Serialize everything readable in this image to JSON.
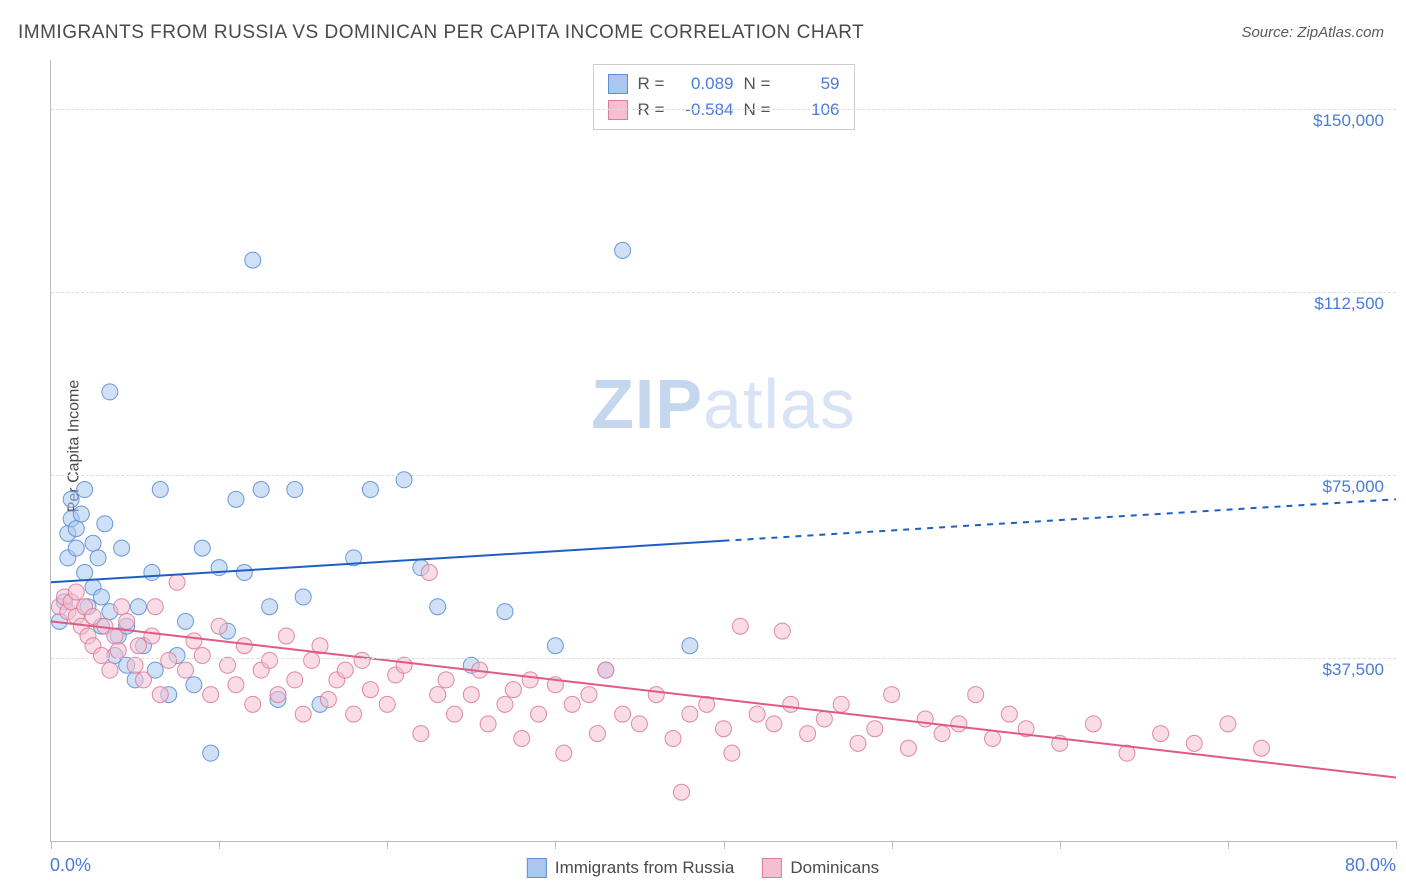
{
  "title": "IMMIGRANTS FROM RUSSIA VS DOMINICAN PER CAPITA INCOME CORRELATION CHART",
  "source": "Source: ZipAtlas.com",
  "ylabel": "Per Capita Income",
  "watermark_bold": "ZIP",
  "watermark_light": "atlas",
  "chart": {
    "type": "scatter",
    "xlim": [
      0,
      80
    ],
    "ylim": [
      0,
      160000
    ],
    "x_axis_left_label": "0.0%",
    "x_axis_right_label": "80.0%",
    "x_ticks_pct": [
      0,
      10,
      20,
      30,
      40,
      50,
      60,
      70,
      80
    ],
    "y_gridlines": [
      {
        "value": 37500,
        "label": "$37,500"
      },
      {
        "value": 75000,
        "label": "$75,000"
      },
      {
        "value": 112500,
        "label": "$112,500"
      },
      {
        "value": 150000,
        "label": "$150,000"
      }
    ],
    "background_color": "#ffffff",
    "grid_color": "#dddddd",
    "axis_color": "#bbbbbb",
    "tick_label_color": "#4a7bd8",
    "marker_radius": 8,
    "marker_opacity": 0.55,
    "marker_stroke_opacity": 0.9,
    "marker_stroke_width": 1,
    "series": [
      {
        "key": "russia",
        "label": "Immigrants from Russia",
        "fill": "#a9c7ef",
        "stroke": "#5c8fd6",
        "R": "0.089",
        "N": "59",
        "trend": {
          "color": "#1e5fc4",
          "width": 2,
          "solid_x_end_pct": 40,
          "y_at_x0": 53000,
          "y_at_x80": 70000
        },
        "points": [
          {
            "x": 0.5,
            "y": 45000
          },
          {
            "x": 0.8,
            "y": 49000
          },
          {
            "x": 1.0,
            "y": 58000
          },
          {
            "x": 1.0,
            "y": 63000
          },
          {
            "x": 1.2,
            "y": 66000
          },
          {
            "x": 1.2,
            "y": 70000
          },
          {
            "x": 1.5,
            "y": 60000
          },
          {
            "x": 1.5,
            "y": 64000
          },
          {
            "x": 1.8,
            "y": 67000
          },
          {
            "x": 2.0,
            "y": 55000
          },
          {
            "x": 2.0,
            "y": 72000
          },
          {
            "x": 2.2,
            "y": 48000
          },
          {
            "x": 2.5,
            "y": 52000
          },
          {
            "x": 2.5,
            "y": 61000
          },
          {
            "x": 2.8,
            "y": 58000
          },
          {
            "x": 3.0,
            "y": 44000
          },
          {
            "x": 3.0,
            "y": 50000
          },
          {
            "x": 3.2,
            "y": 65000
          },
          {
            "x": 3.5,
            "y": 47000
          },
          {
            "x": 3.5,
            "y": 92000
          },
          {
            "x": 3.8,
            "y": 38000
          },
          {
            "x": 4.0,
            "y": 42000
          },
          {
            "x": 4.2,
            "y": 60000
          },
          {
            "x": 4.5,
            "y": 36000
          },
          {
            "x": 4.5,
            "y": 44000
          },
          {
            "x": 5.0,
            "y": 33000
          },
          {
            "x": 5.2,
            "y": 48000
          },
          {
            "x": 5.5,
            "y": 40000
          },
          {
            "x": 6.0,
            "y": 55000
          },
          {
            "x": 6.2,
            "y": 35000
          },
          {
            "x": 6.5,
            "y": 72000
          },
          {
            "x": 7.0,
            "y": 30000
          },
          {
            "x": 7.5,
            "y": 38000
          },
          {
            "x": 8.0,
            "y": 45000
          },
          {
            "x": 8.5,
            "y": 32000
          },
          {
            "x": 9.0,
            "y": 60000
          },
          {
            "x": 9.5,
            "y": 18000
          },
          {
            "x": 10.0,
            "y": 56000
          },
          {
            "x": 10.5,
            "y": 43000
          },
          {
            "x": 11.0,
            "y": 70000
          },
          {
            "x": 11.5,
            "y": 55000
          },
          {
            "x": 12.0,
            "y": 119000
          },
          {
            "x": 12.5,
            "y": 72000
          },
          {
            "x": 13.0,
            "y": 48000
          },
          {
            "x": 13.5,
            "y": 29000
          },
          {
            "x": 14.5,
            "y": 72000
          },
          {
            "x": 15.0,
            "y": 50000
          },
          {
            "x": 16.0,
            "y": 28000
          },
          {
            "x": 18.0,
            "y": 58000
          },
          {
            "x": 19.0,
            "y": 72000
          },
          {
            "x": 21.0,
            "y": 74000
          },
          {
            "x": 22.0,
            "y": 56000
          },
          {
            "x": 23.0,
            "y": 48000
          },
          {
            "x": 25.0,
            "y": 36000
          },
          {
            "x": 27.0,
            "y": 47000
          },
          {
            "x": 30.0,
            "y": 40000
          },
          {
            "x": 33.0,
            "y": 35000
          },
          {
            "x": 34.0,
            "y": 121000
          },
          {
            "x": 38.0,
            "y": 40000
          }
        ]
      },
      {
        "key": "dominican",
        "label": "Dominicans",
        "fill": "#f4c0cf",
        "stroke": "#de7d9b",
        "R": "-0.584",
        "N": "106",
        "trend": {
          "color": "#e05a84",
          "width": 2,
          "solid_x_end_pct": 80,
          "y_at_x0": 45000,
          "y_at_x80": 13000
        },
        "points": [
          {
            "x": 0.5,
            "y": 48000
          },
          {
            "x": 0.8,
            "y": 50000
          },
          {
            "x": 1.0,
            "y": 47000
          },
          {
            "x": 1.2,
            "y": 49000
          },
          {
            "x": 1.5,
            "y": 46000
          },
          {
            "x": 1.5,
            "y": 51000
          },
          {
            "x": 1.8,
            "y": 44000
          },
          {
            "x": 2.0,
            "y": 48000
          },
          {
            "x": 2.2,
            "y": 42000
          },
          {
            "x": 2.5,
            "y": 40000
          },
          {
            "x": 2.5,
            "y": 46000
          },
          {
            "x": 3.0,
            "y": 38000
          },
          {
            "x": 3.2,
            "y": 44000
          },
          {
            "x": 3.5,
            "y": 35000
          },
          {
            "x": 3.8,
            "y": 42000
          },
          {
            "x": 4.0,
            "y": 39000
          },
          {
            "x": 4.2,
            "y": 48000
          },
          {
            "x": 4.5,
            "y": 45000
          },
          {
            "x": 5.0,
            "y": 36000
          },
          {
            "x": 5.2,
            "y": 40000
          },
          {
            "x": 5.5,
            "y": 33000
          },
          {
            "x": 6.0,
            "y": 42000
          },
          {
            "x": 6.2,
            "y": 48000
          },
          {
            "x": 6.5,
            "y": 30000
          },
          {
            "x": 7.0,
            "y": 37000
          },
          {
            "x": 7.5,
            "y": 53000
          },
          {
            "x": 8.0,
            "y": 35000
          },
          {
            "x": 8.5,
            "y": 41000
          },
          {
            "x": 9.0,
            "y": 38000
          },
          {
            "x": 9.5,
            "y": 30000
          },
          {
            "x": 10.0,
            "y": 44000
          },
          {
            "x": 10.5,
            "y": 36000
          },
          {
            "x": 11.0,
            "y": 32000
          },
          {
            "x": 11.5,
            "y": 40000
          },
          {
            "x": 12.0,
            "y": 28000
          },
          {
            "x": 12.5,
            "y": 35000
          },
          {
            "x": 13.0,
            "y": 37000
          },
          {
            "x": 13.5,
            "y": 30000
          },
          {
            "x": 14.0,
            "y": 42000
          },
          {
            "x": 14.5,
            "y": 33000
          },
          {
            "x": 15.0,
            "y": 26000
          },
          {
            "x": 15.5,
            "y": 37000
          },
          {
            "x": 16.0,
            "y": 40000
          },
          {
            "x": 16.5,
            "y": 29000
          },
          {
            "x": 17.0,
            "y": 33000
          },
          {
            "x": 17.5,
            "y": 35000
          },
          {
            "x": 18.0,
            "y": 26000
          },
          {
            "x": 18.5,
            "y": 37000
          },
          {
            "x": 19.0,
            "y": 31000
          },
          {
            "x": 20.0,
            "y": 28000
          },
          {
            "x": 20.5,
            "y": 34000
          },
          {
            "x": 21.0,
            "y": 36000
          },
          {
            "x": 22.0,
            "y": 22000
          },
          {
            "x": 22.5,
            "y": 55000
          },
          {
            "x": 23.0,
            "y": 30000
          },
          {
            "x": 23.5,
            "y": 33000
          },
          {
            "x": 24.0,
            "y": 26000
          },
          {
            "x": 25.0,
            "y": 30000
          },
          {
            "x": 25.5,
            "y": 35000
          },
          {
            "x": 26.0,
            "y": 24000
          },
          {
            "x": 27.0,
            "y": 28000
          },
          {
            "x": 27.5,
            "y": 31000
          },
          {
            "x": 28.0,
            "y": 21000
          },
          {
            "x": 28.5,
            "y": 33000
          },
          {
            "x": 29.0,
            "y": 26000
          },
          {
            "x": 30.0,
            "y": 32000
          },
          {
            "x": 30.5,
            "y": 18000
          },
          {
            "x": 31.0,
            "y": 28000
          },
          {
            "x": 32.0,
            "y": 30000
          },
          {
            "x": 32.5,
            "y": 22000
          },
          {
            "x": 33.0,
            "y": 35000
          },
          {
            "x": 34.0,
            "y": 26000
          },
          {
            "x": 35.0,
            "y": 24000
          },
          {
            "x": 36.0,
            "y": 30000
          },
          {
            "x": 37.0,
            "y": 21000
          },
          {
            "x": 37.5,
            "y": 10000
          },
          {
            "x": 38.0,
            "y": 26000
          },
          {
            "x": 39.0,
            "y": 28000
          },
          {
            "x": 40.0,
            "y": 23000
          },
          {
            "x": 40.5,
            "y": 18000
          },
          {
            "x": 41.0,
            "y": 44000
          },
          {
            "x": 42.0,
            "y": 26000
          },
          {
            "x": 43.0,
            "y": 24000
          },
          {
            "x": 43.5,
            "y": 43000
          },
          {
            "x": 44.0,
            "y": 28000
          },
          {
            "x": 45.0,
            "y": 22000
          },
          {
            "x": 46.0,
            "y": 25000
          },
          {
            "x": 47.0,
            "y": 28000
          },
          {
            "x": 48.0,
            "y": 20000
          },
          {
            "x": 49.0,
            "y": 23000
          },
          {
            "x": 50.0,
            "y": 30000
          },
          {
            "x": 51.0,
            "y": 19000
          },
          {
            "x": 52.0,
            "y": 25000
          },
          {
            "x": 53.0,
            "y": 22000
          },
          {
            "x": 54.0,
            "y": 24000
          },
          {
            "x": 55.0,
            "y": 30000
          },
          {
            "x": 56.0,
            "y": 21000
          },
          {
            "x": 57.0,
            "y": 26000
          },
          {
            "x": 58.0,
            "y": 23000
          },
          {
            "x": 60.0,
            "y": 20000
          },
          {
            "x": 62.0,
            "y": 24000
          },
          {
            "x": 64.0,
            "y": 18000
          },
          {
            "x": 66.0,
            "y": 22000
          },
          {
            "x": 68.0,
            "y": 20000
          },
          {
            "x": 70.0,
            "y": 24000
          },
          {
            "x": 72.0,
            "y": 19000
          }
        ]
      }
    ]
  },
  "stats_legend": {
    "r_label": "R =",
    "n_label": "N ="
  }
}
